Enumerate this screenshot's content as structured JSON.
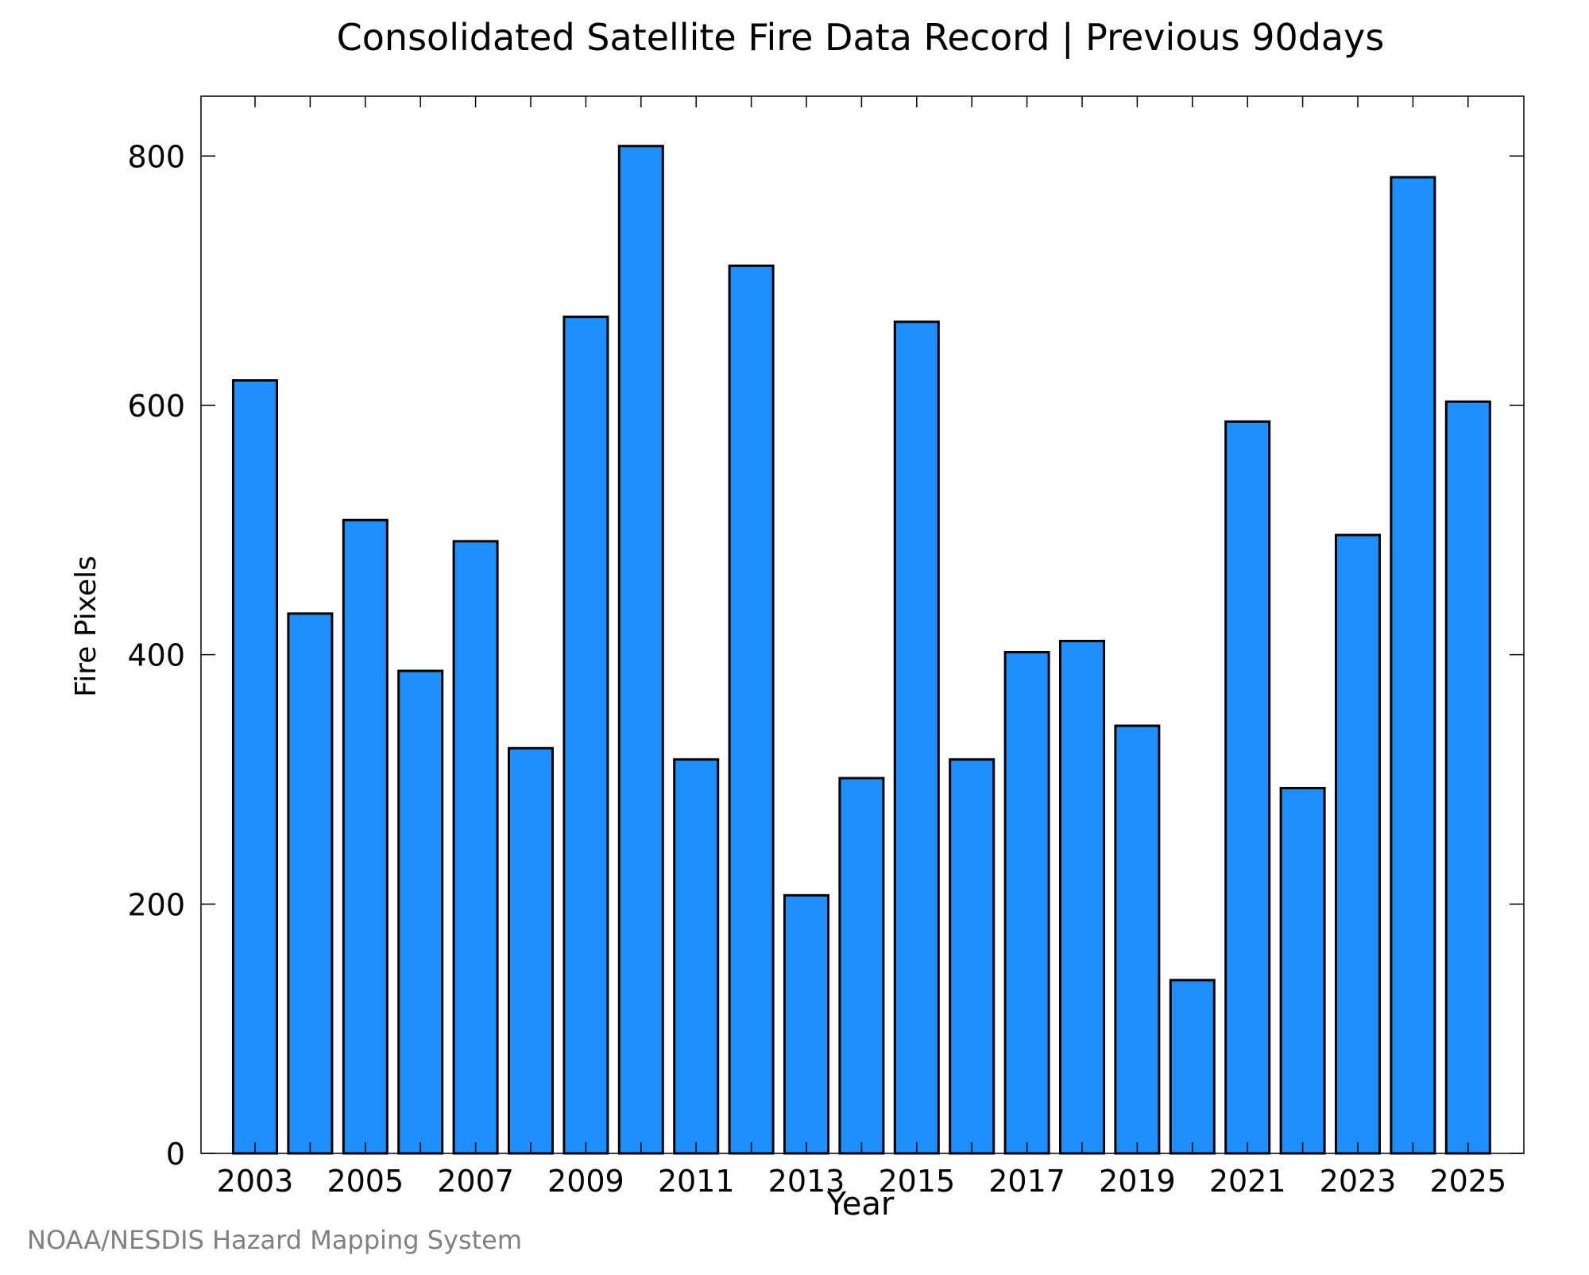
{
  "chart_data": {
    "type": "bar",
    "title": "Consolidated Satellite Fire Data Record | Previous 90days",
    "xlabel": "Year",
    "ylabel": "Fire Pixels",
    "categories": [
      "2003",
      "2004",
      "2005",
      "2006",
      "2007",
      "2008",
      "2009",
      "2010",
      "2011",
      "2012",
      "2013",
      "2014",
      "2015",
      "2016",
      "2017",
      "2018",
      "2019",
      "2020",
      "2021",
      "2022",
      "2023",
      "2024",
      "2025"
    ],
    "values": [
      620,
      433,
      508,
      387,
      491,
      325,
      671,
      808,
      316,
      712,
      207,
      301,
      667,
      316,
      402,
      411,
      343,
      139,
      587,
      293,
      496,
      783,
      603
    ],
    "xtick_labels": [
      "2003",
      "2005",
      "2007",
      "2009",
      "2011",
      "2013",
      "2015",
      "2017",
      "2019",
      "2021",
      "2023",
      "2025"
    ],
    "yticks": [
      0,
      200,
      400,
      600,
      800
    ],
    "ylim": [
      0,
      848
    ],
    "bar_color": "#1e8fff",
    "bar_edge_color": "#000000",
    "grid": false,
    "source": "NOAA/NESDIS Hazard Mapping System"
  }
}
